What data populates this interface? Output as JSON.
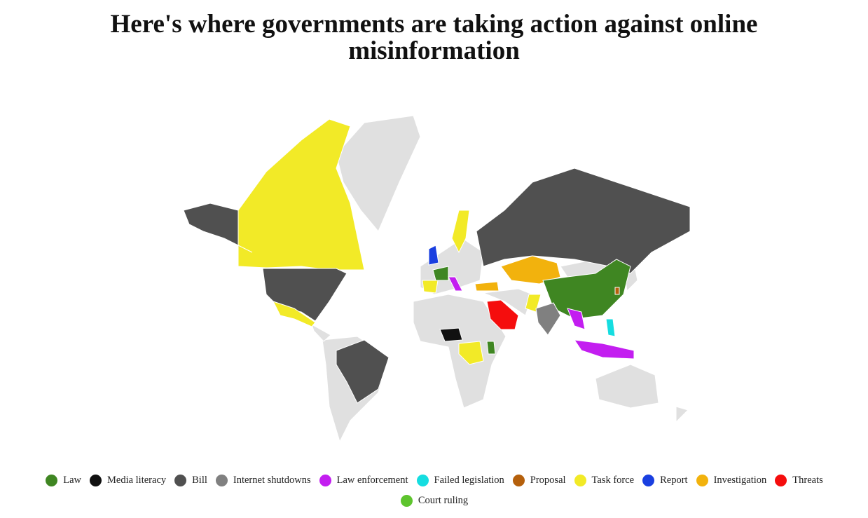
{
  "title": "Here's where governments are taking action against online misinformation",
  "legend": [
    {
      "name": "Law",
      "color": "#3f8622"
    },
    {
      "name": "Media literacy",
      "color": "#111111"
    },
    {
      "name": "Bill",
      "color": "#505050"
    },
    {
      "name": "Internet shutdowns",
      "color": "#808080"
    },
    {
      "name": "Law enforcement",
      "color": "#c31ef0"
    },
    {
      "name": "Failed legislation",
      "color": "#15dde0"
    },
    {
      "name": "Proposal",
      "color": "#b5600c"
    },
    {
      "name": "Task force",
      "color": "#f2ea27"
    },
    {
      "name": "Report",
      "color": "#1a3fe0"
    },
    {
      "name": "Investigation",
      "color": "#f2b20d"
    },
    {
      "name": "Threats",
      "color": "#f50d0d"
    },
    {
      "name": "Court ruling",
      "color": "#5ec42e"
    }
  ]
}
